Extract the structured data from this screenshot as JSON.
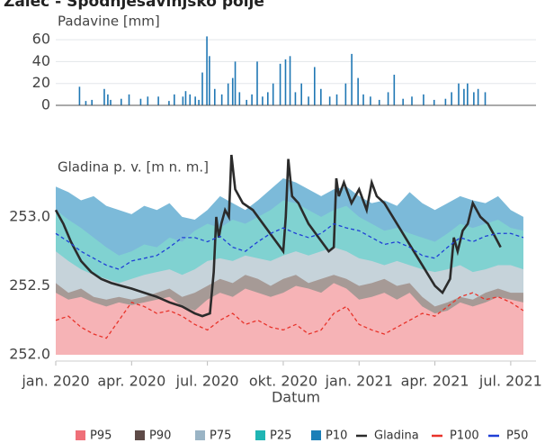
{
  "title": "Žalec - Spodnjesavinjsko polje",
  "chart_data": [
    {
      "type": "bar",
      "subtitle": "Padavine [mm]",
      "color": "#1f77b4",
      "grid": true,
      "xlim": [
        0,
        19
      ],
      "ylim": [
        0,
        65
      ],
      "yticks": [
        0,
        20,
        40,
        60
      ],
      "x": [
        0.94,
        1.19,
        1.43,
        1.92,
        2.06,
        2.17,
        2.59,
        2.9,
        3.36,
        3.64,
        4.06,
        4.48,
        4.69,
        5.03,
        5.14,
        5.31,
        5.52,
        5.66,
        5.8,
        5.98,
        6.08,
        6.29,
        6.57,
        6.82,
        7.0,
        7.1,
        7.27,
        7.55,
        7.76,
        7.97,
        8.18,
        8.39,
        8.6,
        8.88,
        9.09,
        9.27,
        9.48,
        9.72,
        10.0,
        10.24,
        10.49,
        10.84,
        11.12,
        11.47,
        11.71,
        11.96,
        12.17,
        12.45,
        12.8,
        13.15,
        13.39,
        13.74,
        14.09,
        14.55,
        14.97,
        15.42,
        15.66,
        15.94,
        16.15,
        16.29,
        16.54,
        16.71,
        16.99
      ],
      "values": [
        17,
        4,
        5,
        15,
        10,
        5,
        6,
        10,
        6,
        8,
        8,
        4,
        10,
        8,
        13,
        10,
        8,
        5,
        30,
        63,
        45,
        15,
        10,
        20,
        25,
        40,
        12,
        5,
        10,
        40,
        8,
        12,
        20,
        38,
        42,
        45,
        12,
        20,
        8,
        35,
        15,
        8,
        10,
        20,
        47,
        25,
        10,
        8,
        5,
        12,
        28,
        6,
        8,
        10,
        5,
        6,
        12,
        20,
        15,
        20,
        12,
        15,
        12
      ]
    },
    {
      "type": "band",
      "subtitle": "Gladina p. v. [m n. m.]",
      "x_label": "Datum",
      "grid": false,
      "xlim": [
        0,
        19
      ],
      "ylim": [
        252,
        253.45
      ],
      "yticks": [
        {
          "value": 252,
          "label": "252.0"
        },
        252.5,
        {
          "value": 253,
          "label": "253.0"
        }
      ],
      "xticks": [
        {
          "value": 0,
          "label": "jan. 2020"
        },
        {
          "value": 3,
          "label": "apr. 2020"
        },
        {
          "value": 6,
          "label": "jul. 2020"
        },
        {
          "value": 9,
          "label": "okt. 2020"
        },
        {
          "value": 12,
          "label": "jan. 2021"
        },
        {
          "value": 15,
          "label": "apr. 2021"
        },
        {
          "value": 18,
          "label": "jul. 2021"
        }
      ],
      "x": [
        0,
        0.5,
        1,
        1.5,
        2,
        2.5,
        3,
        3.5,
        4,
        4.5,
        5,
        5.5,
        6,
        6.5,
        7,
        7.5,
        8,
        8.5,
        9,
        9.5,
        10,
        10.5,
        11,
        11.5,
        12,
        12.5,
        13,
        13.5,
        14,
        14.5,
        15,
        15.5,
        16,
        16.5,
        17,
        17.5,
        18,
        18.5
      ],
      "series": [
        {
          "name": "P95",
          "style": "area",
          "color": "#ef6f78",
          "fill": "#f6b3b6",
          "values": [
            252.45,
            252.4,
            252.42,
            252.38,
            252.35,
            252.38,
            252.36,
            252.38,
            252.4,
            252.42,
            252.35,
            252.32,
            252.4,
            252.45,
            252.42,
            252.48,
            252.45,
            252.42,
            252.45,
            252.5,
            252.48,
            252.45,
            252.52,
            252.48,
            252.4,
            252.42,
            252.45,
            252.4,
            252.45,
            252.35,
            252.3,
            252.32,
            252.38,
            252.35,
            252.38,
            252.42,
            252.4,
            252.38
          ]
        },
        {
          "name": "P90",
          "style": "area",
          "color": "#5e4b48",
          "fill": "#a69a96",
          "values": [
            252.52,
            252.45,
            252.48,
            252.42,
            252.4,
            252.42,
            252.4,
            252.42,
            252.45,
            252.48,
            252.42,
            252.45,
            252.5,
            252.55,
            252.52,
            252.58,
            252.55,
            252.5,
            252.55,
            252.58,
            252.52,
            252.55,
            252.58,
            252.55,
            252.5,
            252.52,
            252.55,
            252.5,
            252.52,
            252.42,
            252.35,
            252.38,
            252.42,
            252.4,
            252.45,
            252.48,
            252.45,
            252.45
          ]
        },
        {
          "name": "P75",
          "style": "area",
          "color": "#9ab4c5",
          "fill": "#c6d3da",
          "values": [
            252.75,
            252.68,
            252.62,
            252.58,
            252.55,
            252.52,
            252.55,
            252.58,
            252.6,
            252.62,
            252.58,
            252.62,
            252.68,
            252.7,
            252.68,
            252.72,
            252.7,
            252.68,
            252.72,
            252.75,
            252.72,
            252.75,
            252.78,
            252.75,
            252.7,
            252.68,
            252.65,
            252.68,
            252.65,
            252.62,
            252.6,
            252.62,
            252.65,
            252.6,
            252.62,
            252.65,
            252.65,
            252.62
          ]
        },
        {
          "name": "P25",
          "style": "area",
          "color": "#1fb5b4",
          "fill": "#80d2d1",
          "values": [
            253.05,
            252.98,
            252.92,
            252.85,
            252.78,
            252.72,
            252.75,
            252.8,
            252.78,
            252.85,
            252.82,
            252.9,
            252.95,
            252.92,
            252.98,
            252.95,
            253.0,
            253.05,
            253.12,
            253.1,
            253.05,
            253.0,
            253.05,
            253.08,
            253.0,
            252.95,
            252.9,
            252.92,
            252.88,
            252.85,
            252.82,
            252.88,
            252.95,
            252.92,
            252.95,
            252.98,
            252.92,
            252.9
          ]
        },
        {
          "name": "P10",
          "style": "area",
          "color": "#1c7fb8",
          "fill": "#7cbad9",
          "values": [
            253.22,
            253.18,
            253.12,
            253.15,
            253.08,
            253.05,
            253.02,
            253.08,
            253.05,
            253.1,
            253.0,
            252.98,
            253.05,
            253.15,
            253.1,
            253.05,
            253.12,
            253.2,
            253.28,
            253.25,
            253.2,
            253.15,
            253.2,
            253.22,
            253.15,
            253.1,
            253.12,
            253.08,
            253.18,
            253.1,
            253.05,
            253.1,
            253.15,
            253.12,
            253.1,
            253.15,
            253.05,
            253.0
          ]
        },
        {
          "name": "Gladina",
          "style": "line",
          "color": "#2b2b2b",
          "x": [
            0,
            0.3,
            0.6,
            1.0,
            1.4,
            1.8,
            2.2,
            2.6,
            3.0,
            3.5,
            4.0,
            4.5,
            5.0,
            5.5,
            5.8,
            6.1,
            6.25,
            6.35,
            6.45,
            6.55,
            6.7,
            6.85,
            6.95,
            7.1,
            7.4,
            7.8,
            8.2,
            8.6,
            9.0,
            9.1,
            9.2,
            9.35,
            9.6,
            10.0,
            10.4,
            10.8,
            11.0,
            11.1,
            11.2,
            11.4,
            11.7,
            12.0,
            12.3,
            12.5,
            12.7,
            13.0,
            13.5,
            14.0,
            14.5,
            15.0,
            15.3,
            15.6,
            15.75,
            15.9,
            16.1,
            16.3,
            16.5,
            16.8,
            17.1,
            17.4,
            17.6
          ],
          "values": [
            253.05,
            252.95,
            252.82,
            252.68,
            252.6,
            252.55,
            252.52,
            252.5,
            252.48,
            252.45,
            252.42,
            252.38,
            252.35,
            252.3,
            252.28,
            252.3,
            252.6,
            253.0,
            252.85,
            252.95,
            253.05,
            253.0,
            253.45,
            253.2,
            253.1,
            253.05,
            252.95,
            252.85,
            252.75,
            253.0,
            253.42,
            253.15,
            253.1,
            252.95,
            252.85,
            252.75,
            252.78,
            253.28,
            253.15,
            253.25,
            253.1,
            253.2,
            253.05,
            253.25,
            253.15,
            253.1,
            252.95,
            252.8,
            252.65,
            252.5,
            252.45,
            252.55,
            252.85,
            252.75,
            252.9,
            252.95,
            253.1,
            253.0,
            252.95,
            252.85,
            252.78
          ]
        },
        {
          "name": "P100",
          "style": "dashed",
          "color": "#e8332a",
          "values": [
            252.25,
            252.28,
            252.2,
            252.15,
            252.12,
            252.25,
            252.38,
            252.35,
            252.3,
            252.32,
            252.28,
            252.22,
            252.18,
            252.25,
            252.3,
            252.22,
            252.25,
            252.2,
            252.18,
            252.22,
            252.15,
            252.18,
            252.3,
            252.35,
            252.22,
            252.18,
            252.15,
            252.2,
            252.25,
            252.3,
            252.28,
            252.35,
            252.42,
            252.45,
            252.4,
            252.42,
            252.38,
            252.32
          ]
        },
        {
          "name": "P50",
          "style": "dashed",
          "color": "#1f3fd6",
          "values": [
            252.88,
            252.82,
            252.75,
            252.7,
            252.65,
            252.62,
            252.68,
            252.7,
            252.72,
            252.78,
            252.85,
            252.85,
            252.82,
            252.86,
            252.78,
            252.75,
            252.82,
            252.88,
            252.92,
            252.88,
            252.85,
            252.88,
            252.95,
            252.92,
            252.9,
            252.85,
            252.8,
            252.82,
            252.78,
            252.72,
            252.7,
            252.78,
            252.85,
            252.82,
            252.86,
            252.88,
            252.88,
            252.85
          ]
        }
      ]
    }
  ]
}
